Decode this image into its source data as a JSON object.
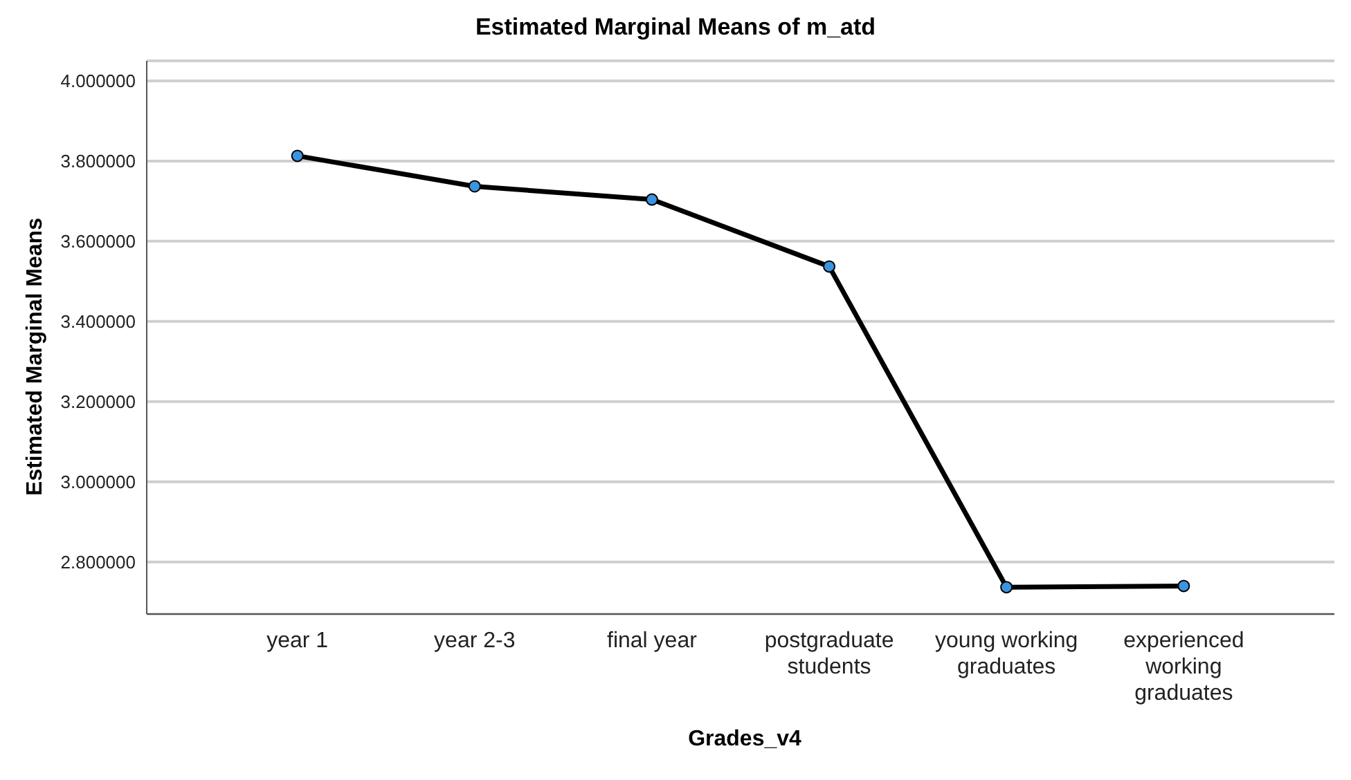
{
  "chart_data": {
    "type": "line",
    "title": "Estimated Marginal Means of m_atd",
    "xlabel": "Grades_v4",
    "ylabel": "Estimated Marginal Means",
    "categories": [
      "year 1",
      "year 2-3",
      "final year",
      "postgraduate students",
      "young working graduates",
      "experienced working graduates"
    ],
    "series": [
      {
        "color": "#000000",
        "values": [
          3.813,
          3.737,
          3.704,
          3.537,
          2.737,
          2.74
        ]
      }
    ],
    "ylim": [
      2.67,
      4.05
    ],
    "yticks": [
      {
        "value": 2.8,
        "label": "2.800000"
      },
      {
        "value": 3.0,
        "label": "3.000000"
      },
      {
        "value": 3.2,
        "label": "3.200000"
      },
      {
        "value": 3.4,
        "label": "3.400000"
      },
      {
        "value": 3.6,
        "label": "3.600000"
      },
      {
        "value": 3.8,
        "label": "3.800000"
      },
      {
        "value": 4.0,
        "label": "4.000000"
      }
    ],
    "grid": "y",
    "marker": "circle",
    "line_style": "solid",
    "legend": false
  }
}
